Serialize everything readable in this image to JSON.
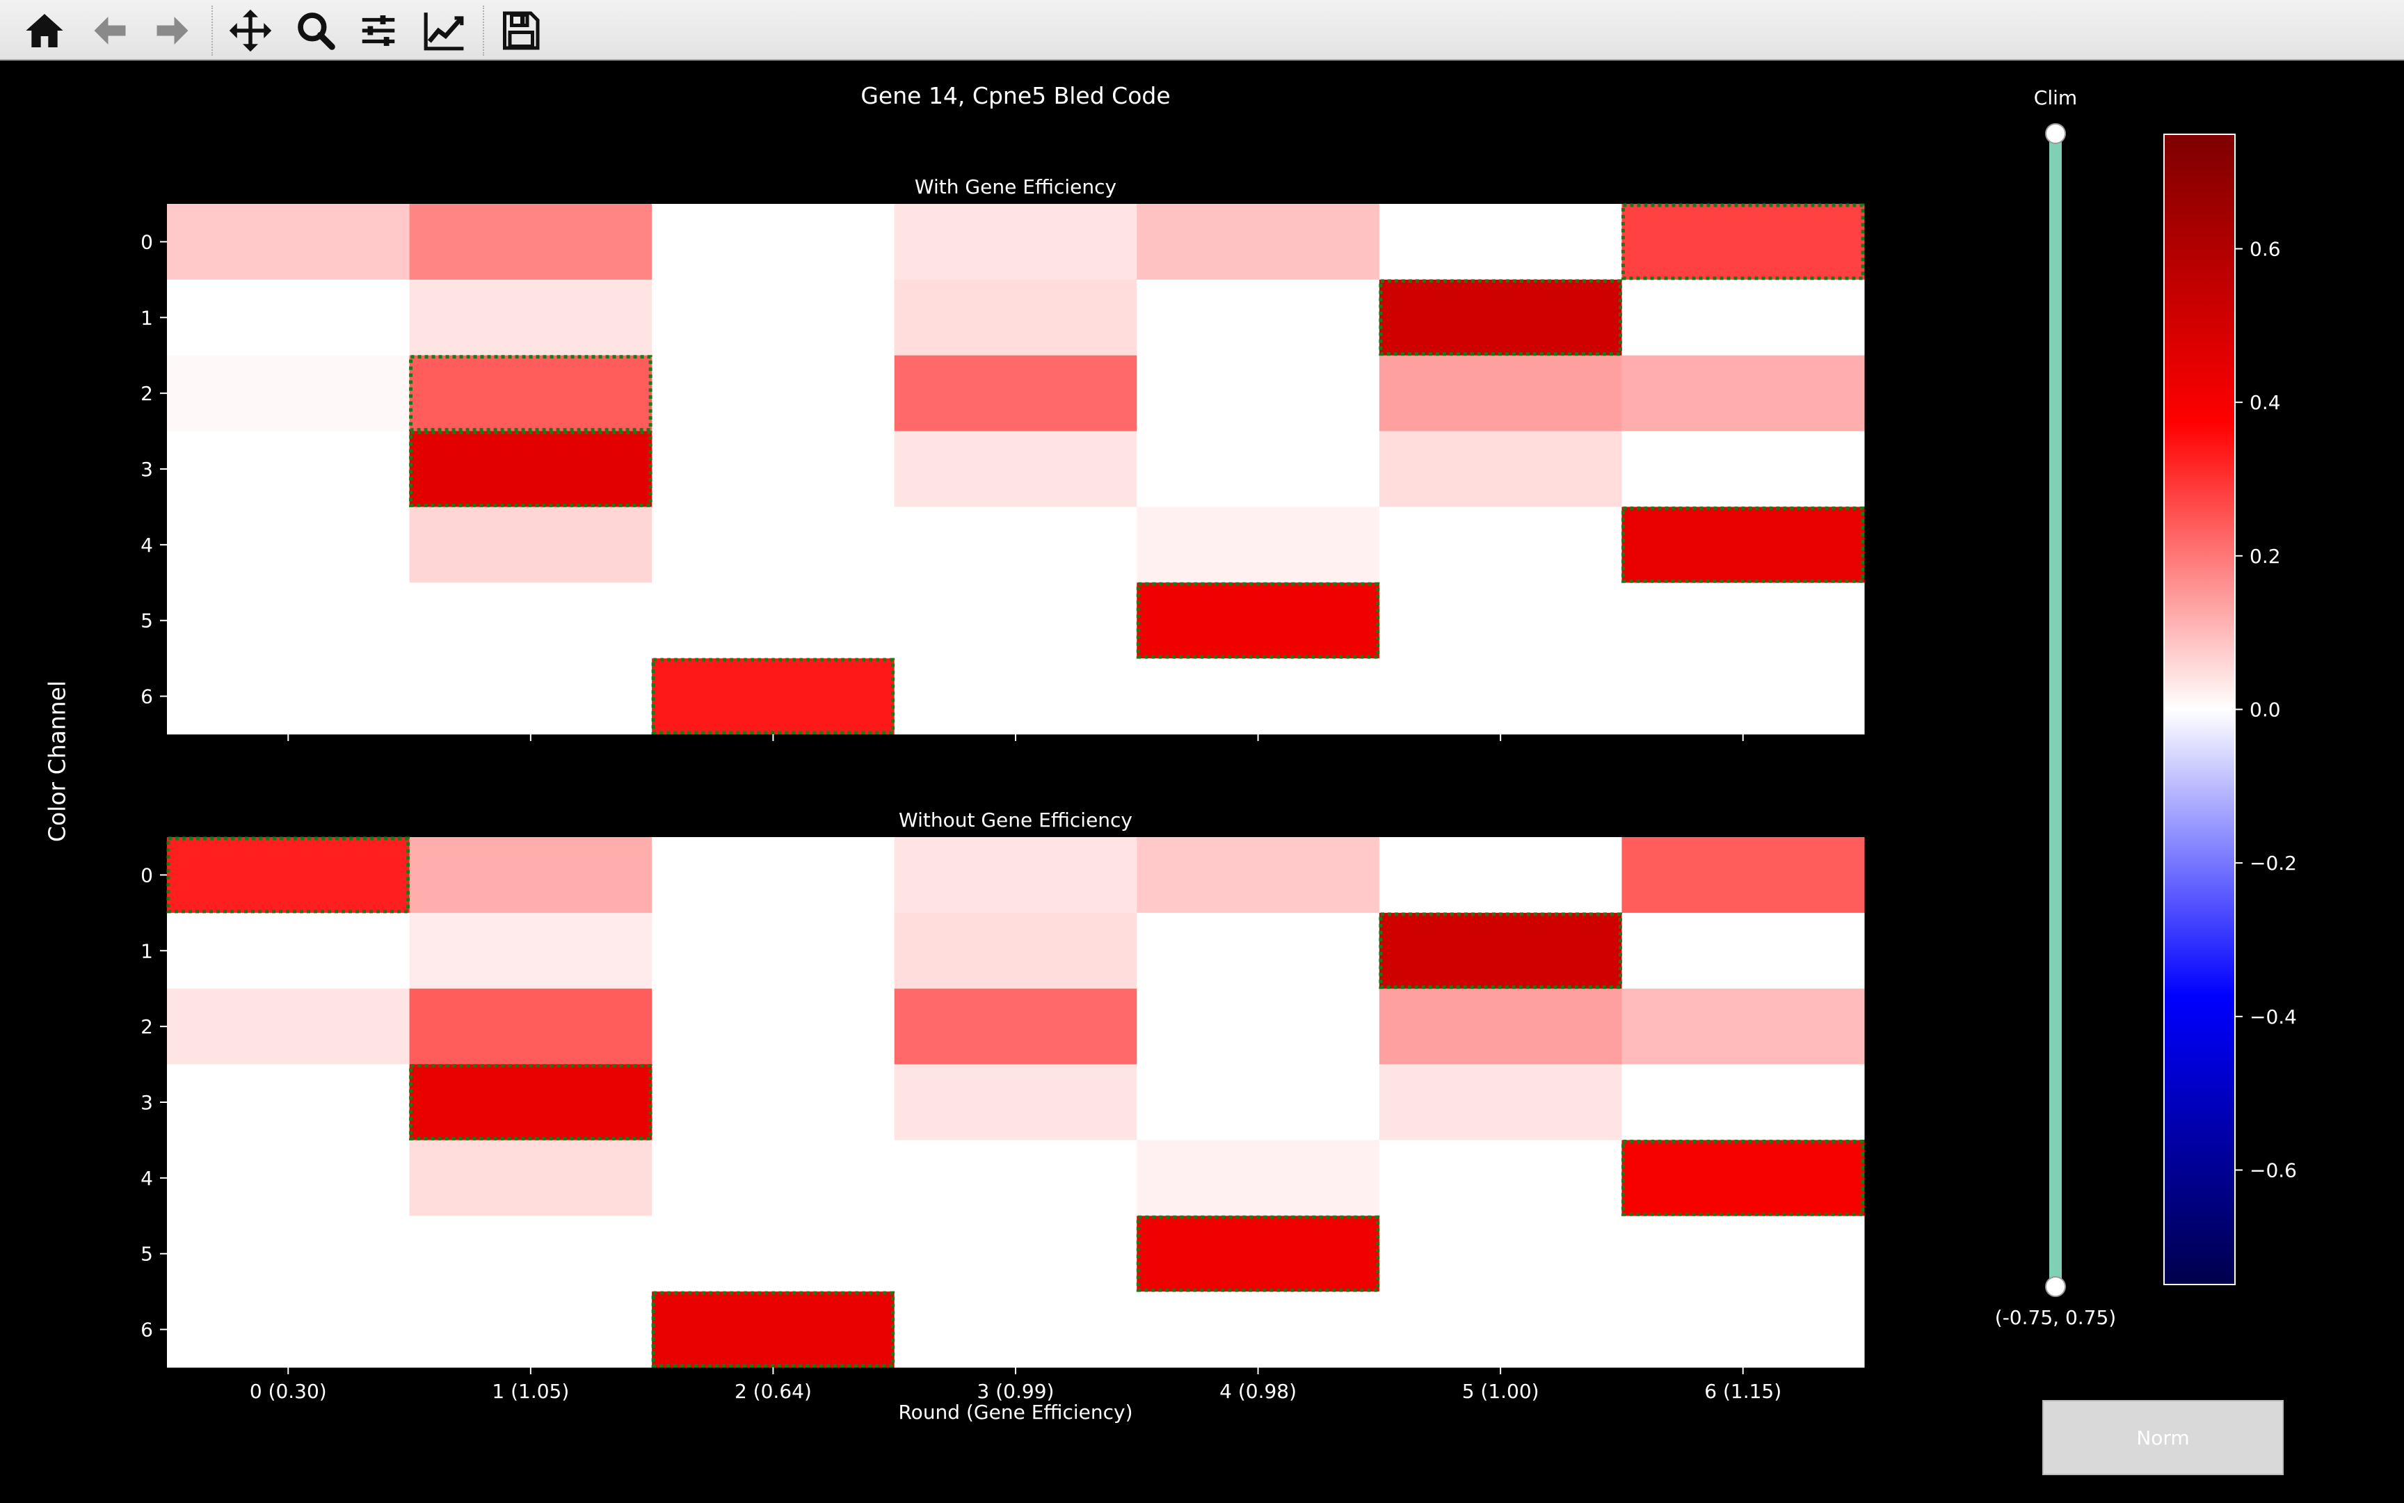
{
  "toolbar": {
    "buttons": [
      {
        "name": "home-button",
        "icon": "home-icon"
      },
      {
        "name": "back-button",
        "icon": "arrow-left-icon"
      },
      {
        "name": "forward-button",
        "icon": "arrow-right-icon"
      },
      {
        "name": "pan-button",
        "icon": "move-icon"
      },
      {
        "name": "zoom-button",
        "icon": "magnifier-icon"
      },
      {
        "name": "configure-subplots-button",
        "icon": "sliders-icon"
      },
      {
        "name": "edit-axis-button",
        "icon": "line-chart-icon"
      },
      {
        "name": "save-button",
        "icon": "floppy-disk-icon"
      }
    ]
  },
  "figure": {
    "title": "Gene 14, Cpne5 Bled Code",
    "ylabel": "Color Channel",
    "xlabel": "Round (Gene Efficiency)"
  },
  "controls": {
    "clim_label": "Clim",
    "clim_value": "(-0.75, 0.75)",
    "norm_label": "Norm"
  },
  "colorbar": {
    "ticks": [
      "0.6",
      "0.4",
      "0.2",
      "0.0",
      "−0.2",
      "−0.4",
      "−0.6"
    ],
    "tick_values": [
      0.6,
      0.4,
      0.2,
      0.0,
      -0.2,
      -0.4,
      -0.6
    ],
    "range": [
      -0.75,
      0.75
    ],
    "colormap": "seismic"
  },
  "chart_data": [
    {
      "type": "heatmap",
      "title": "With Gene Efficiency",
      "xlabel": "",
      "ylabel": "",
      "x_ticks": [],
      "y_ticks": [
        "0",
        "1",
        "2",
        "3",
        "4",
        "5",
        "6"
      ],
      "clim": [
        -0.75,
        0.75
      ],
      "colormap": "seismic",
      "values": [
        [
          0.08,
          0.18,
          0.0,
          0.04,
          0.09,
          0.0,
          0.28
        ],
        [
          0.0,
          0.04,
          0.0,
          0.05,
          0.0,
          0.52,
          0.0
        ],
        [
          0.01,
          0.24,
          0.0,
          0.22,
          0.0,
          0.14,
          0.12
        ],
        [
          0.0,
          0.46,
          0.0,
          0.04,
          0.0,
          0.05,
          0.0
        ],
        [
          0.0,
          0.06,
          0.0,
          0.0,
          0.02,
          0.0,
          0.44
        ],
        [
          0.0,
          0.0,
          0.0,
          0.0,
          0.42,
          0.0,
          0.0
        ],
        [
          0.0,
          0.0,
          0.34,
          0.0,
          0.0,
          0.0,
          0.0
        ]
      ],
      "highlighted_cells": [
        [
          0,
          6
        ],
        [
          1,
          5
        ],
        [
          2,
          1
        ],
        [
          3,
          1
        ],
        [
          4,
          6
        ],
        [
          5,
          4
        ],
        [
          6,
          2
        ]
      ],
      "highlight_color": "#1a7a1a"
    },
    {
      "type": "heatmap",
      "title": "Without Gene Efficiency",
      "xlabel": "Round (Gene Efficiency)",
      "ylabel": "",
      "x_ticks": [
        "0 (0.30)",
        "1 (1.05)",
        "2 (0.64)",
        "3 (0.99)",
        "4 (0.98)",
        "5 (1.00)",
        "6 (1.15)"
      ],
      "y_ticks": [
        "0",
        "1",
        "2",
        "3",
        "4",
        "5",
        "6"
      ],
      "clim": [
        -0.75,
        0.75
      ],
      "colormap": "seismic",
      "values": [
        [
          0.33,
          0.12,
          0.0,
          0.04,
          0.08,
          0.0,
          0.24
        ],
        [
          0.0,
          0.03,
          0.0,
          0.05,
          0.0,
          0.52,
          0.0
        ],
        [
          0.04,
          0.24,
          0.0,
          0.22,
          0.0,
          0.14,
          0.1
        ],
        [
          0.0,
          0.44,
          0.0,
          0.04,
          0.0,
          0.04,
          0.0
        ],
        [
          0.0,
          0.05,
          0.0,
          0.0,
          0.02,
          0.0,
          0.4
        ],
        [
          0.0,
          0.0,
          0.0,
          0.0,
          0.42,
          0.0,
          0.0
        ],
        [
          0.0,
          0.0,
          0.44,
          0.0,
          0.0,
          0.0,
          0.0
        ]
      ],
      "highlighted_cells": [
        [
          0,
          0
        ],
        [
          1,
          5
        ],
        [
          3,
          1
        ],
        [
          4,
          6
        ],
        [
          5,
          4
        ],
        [
          6,
          2
        ]
      ],
      "highlight_color": "#1a7a1a"
    }
  ]
}
